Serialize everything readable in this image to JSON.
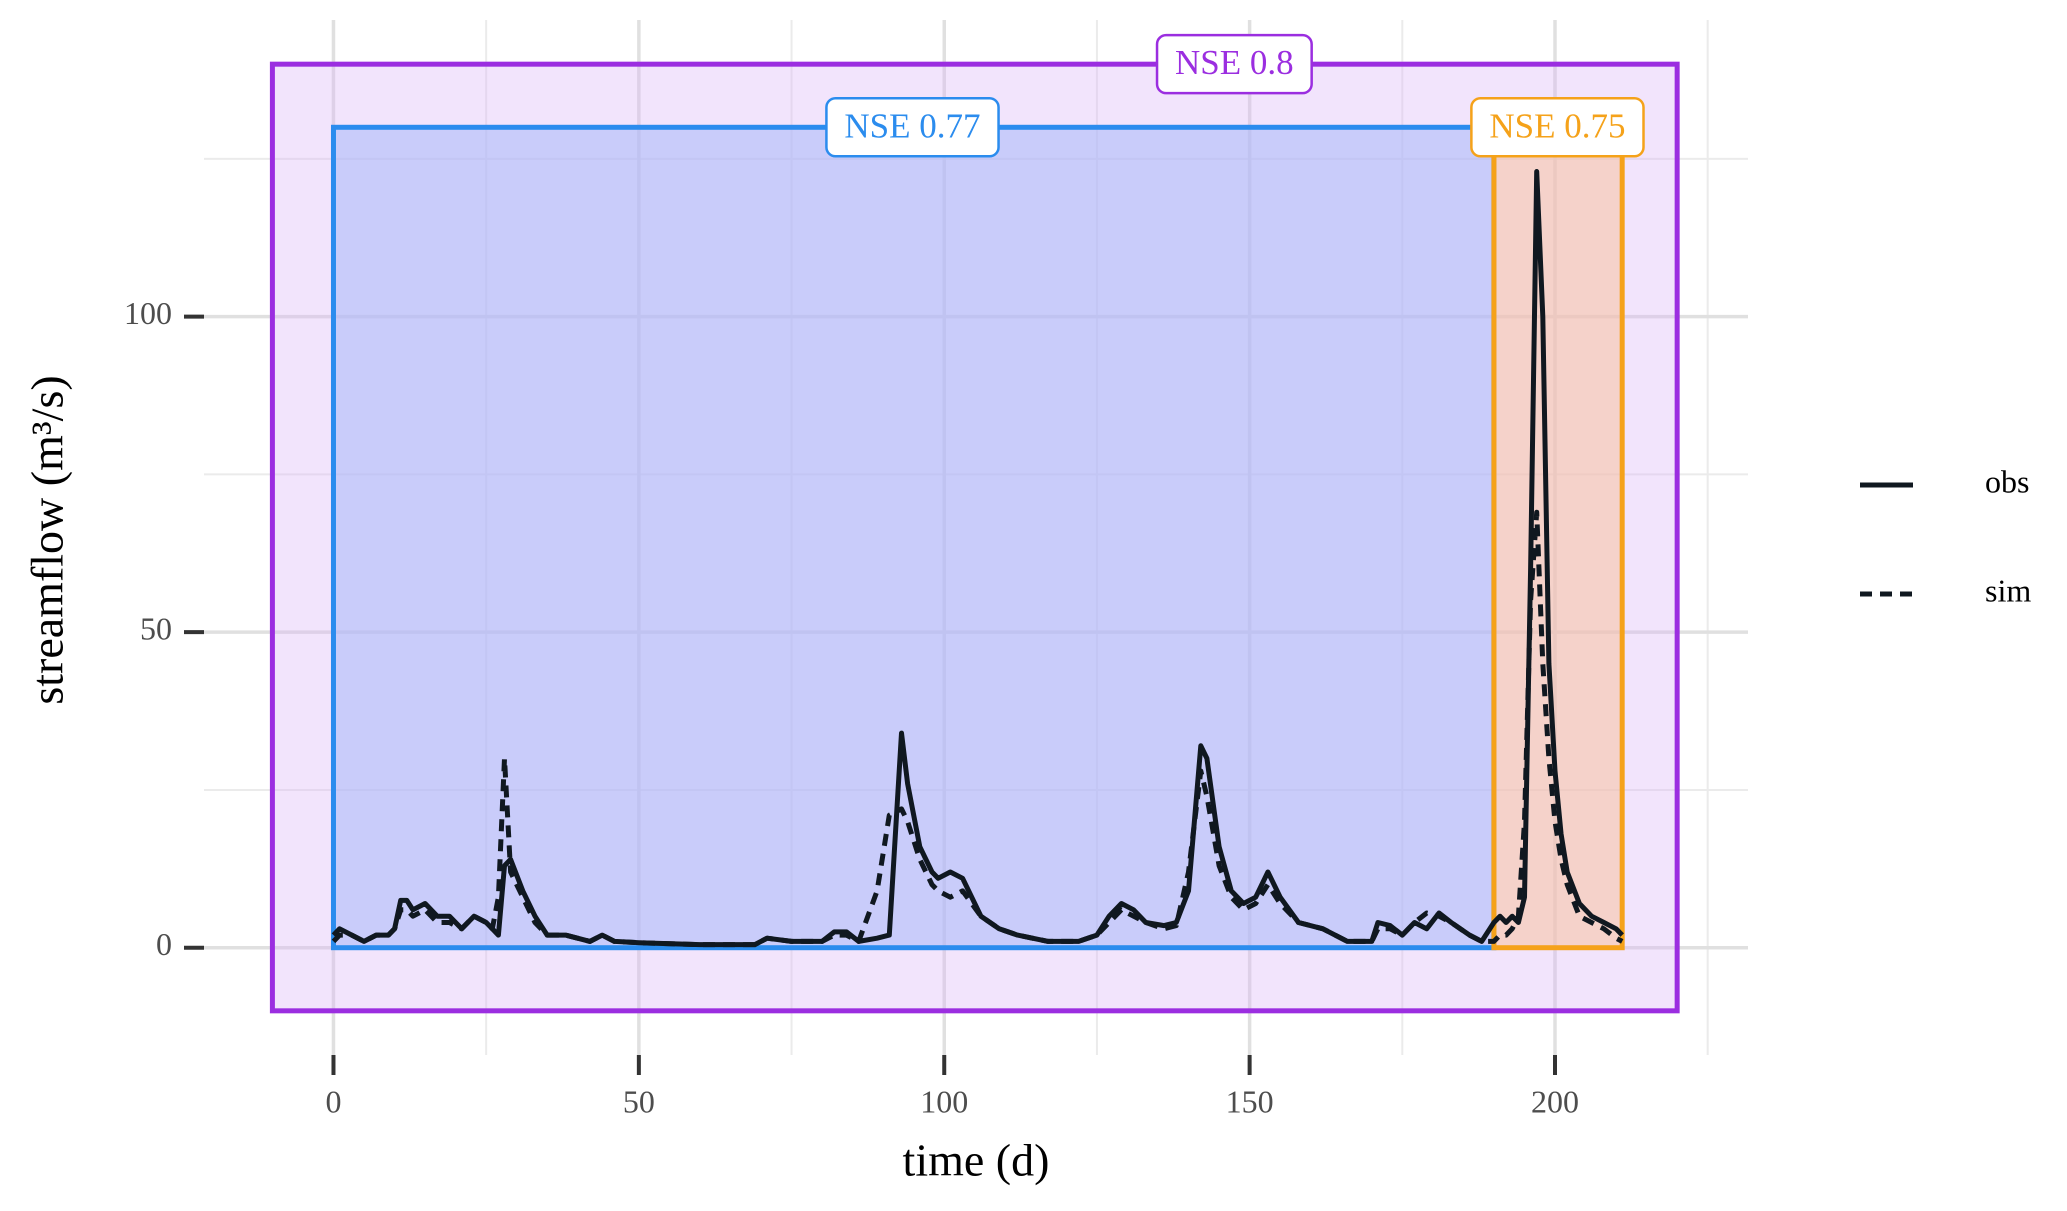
{
  "chart_data": {
    "type": "line",
    "x_label": "time (d)",
    "y_label": "streamflow (m³/s)",
    "xlim": [
      -21.2,
      231.6
    ],
    "ylim": [
      -17,
      147
    ],
    "xticks": [
      0,
      50,
      100,
      150,
      200
    ],
    "yticks": [
      0,
      50,
      100
    ],
    "xminorticks": [
      25,
      75,
      125,
      175,
      225
    ],
    "yminorticks": [
      25,
      75,
      125
    ],
    "grid": true,
    "legend": "right",
    "regions": [
      {
        "label": "NSE 0.8",
        "color": "#9b2ee0",
        "fill": "#d9b3f5",
        "xmin": -10,
        "xmax": 220,
        "ymin": -10,
        "ymax": 140,
        "label_x": 147.5
      },
      {
        "label": "NSE 0.77",
        "color": "#2b8cee",
        "fill": "#a7b8f8",
        "xmin": 0,
        "xmax": 190,
        "ymin": 0,
        "ymax": 130,
        "label_x": 94.8
      },
      {
        "label": "NSE 0.75",
        "color": "#f5a21a",
        "fill": "#f7c2a0",
        "xmin": 190,
        "xmax": 211,
        "ymin": 0,
        "ymax": 130,
        "label_x": 200.4
      }
    ],
    "x": [
      0,
      1,
      3,
      5,
      7,
      9,
      10,
      11,
      12,
      13,
      15,
      17,
      19,
      21,
      23,
      25,
      26,
      27,
      28,
      29,
      31,
      33,
      35,
      38,
      42,
      44,
      46,
      50,
      60,
      69,
      71,
      75,
      80,
      82,
      84,
      86,
      89,
      91,
      93,
      94,
      96,
      98,
      99,
      101,
      103,
      106,
      109,
      112,
      117,
      122,
      125,
      127,
      129,
      131,
      133,
      136,
      138,
      140,
      142,
      143,
      145,
      147,
      149,
      151,
      153,
      155,
      158,
      162,
      166,
      170,
      171,
      173,
      175,
      177,
      179,
      181,
      183,
      186,
      188,
      190,
      191,
      192,
      193,
      194,
      195,
      196,
      197,
      198,
      199,
      200,
      201,
      202,
      204,
      206,
      208,
      210,
      211
    ],
    "series": [
      {
        "name": "obs",
        "color": "#101820",
        "dash": false,
        "values": [
          2,
          3,
          2,
          1,
          2,
          2,
          3,
          7.5,
          7.5,
          6,
          7,
          5,
          5,
          3,
          5,
          4,
          3,
          2,
          13,
          14,
          9,
          5,
          2,
          2,
          1,
          2,
          1,
          0.8,
          0.5,
          0.5,
          1.5,
          1,
          1,
          2.5,
          2.5,
          1,
          1.5,
          2,
          34,
          26,
          16,
          12,
          11,
          12,
          11,
          5,
          3,
          2,
          1,
          1,
          2,
          5,
          7,
          6,
          4,
          3.5,
          4,
          9,
          32,
          30,
          16,
          9,
          7,
          8,
          12,
          8,
          4,
          3,
          1,
          1,
          4,
          3.5,
          2,
          4,
          3,
          5.5,
          4,
          2,
          1,
          4,
          5,
          4,
          5,
          4,
          8,
          60,
          123,
          100,
          45,
          28,
          18,
          12,
          7,
          5,
          4,
          3,
          2
        ]
      },
      {
        "name": "sim",
        "color": "#101820",
        "dash": true,
        "values": [
          1,
          2,
          2,
          1,
          2,
          2,
          3,
          6,
          6,
          5,
          6,
          4,
          4,
          3,
          5,
          4,
          3,
          8,
          30,
          12,
          8,
          4,
          2,
          2,
          1,
          2,
          1,
          0.8,
          0.5,
          0.5,
          1.5,
          1,
          1,
          2,
          2,
          1,
          9,
          21,
          22,
          20,
          14,
          10,
          9,
          8,
          9,
          5,
          3,
          2,
          1,
          1,
          2,
          4,
          6,
          5,
          4,
          3,
          3.5,
          12,
          28,
          24,
          13,
          8,
          6,
          7,
          10,
          7,
          4,
          3,
          1,
          1,
          3,
          3,
          2,
          4,
          5.5,
          5,
          4,
          2,
          1,
          1,
          2,
          2,
          3,
          5,
          20,
          55,
          69,
          45,
          30,
          20,
          14,
          10,
          5,
          4,
          3,
          1.5,
          1
        ]
      }
    ]
  }
}
